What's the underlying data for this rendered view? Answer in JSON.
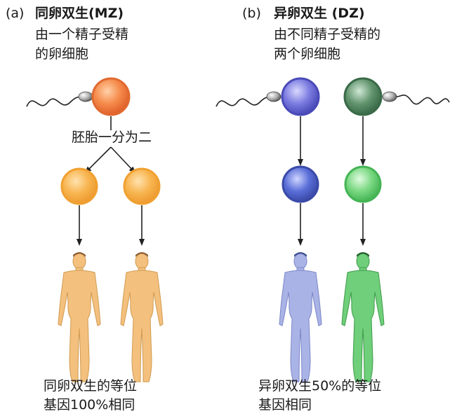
{
  "panels": [
    {
      "label": "(a)",
      "title": "同卵双生(MZ)",
      "desc_line1": "由一个精子受精",
      "desc_line2": "的卵细胞",
      "split_label": "胚胎一分为二",
      "result_line1": "同卵双生的等位",
      "result_line2": "基因100%相同",
      "colors": {
        "egg": "#f07a3c",
        "twin_a": "#f5a53a",
        "twin_b": "#f5a53a",
        "body_a": "#f3c07e",
        "body_b": "#f3c07e"
      }
    },
    {
      "label": "(b)",
      "title": "异卵双生 (DZ)",
      "desc_line1": "由不同精子受精的",
      "desc_line2": "两个卵细胞",
      "result_line1": "异卵双生50%的等位",
      "result_line2": "基因相同",
      "colors": {
        "egg_a": "#6a6ad6",
        "egg_b": "#4e8a5e",
        "twin_a": "#5468d2",
        "twin_b": "#5cc46a",
        "body_a": "#aab3e6",
        "body_b": "#6fcf7a"
      }
    }
  ]
}
